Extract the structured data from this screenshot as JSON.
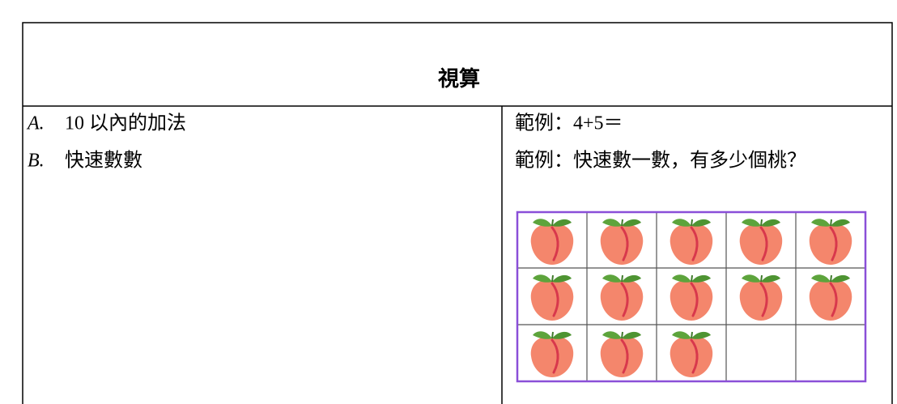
{
  "table": {
    "header": "視算",
    "rows": [
      {
        "label": "A.",
        "text": "10 以內的加法",
        "example": "範例：4+5＝"
      },
      {
        "label": "B.",
        "text": "快速數數",
        "example": "範例：快速數一數，有多少個桃？"
      }
    ]
  }
}
